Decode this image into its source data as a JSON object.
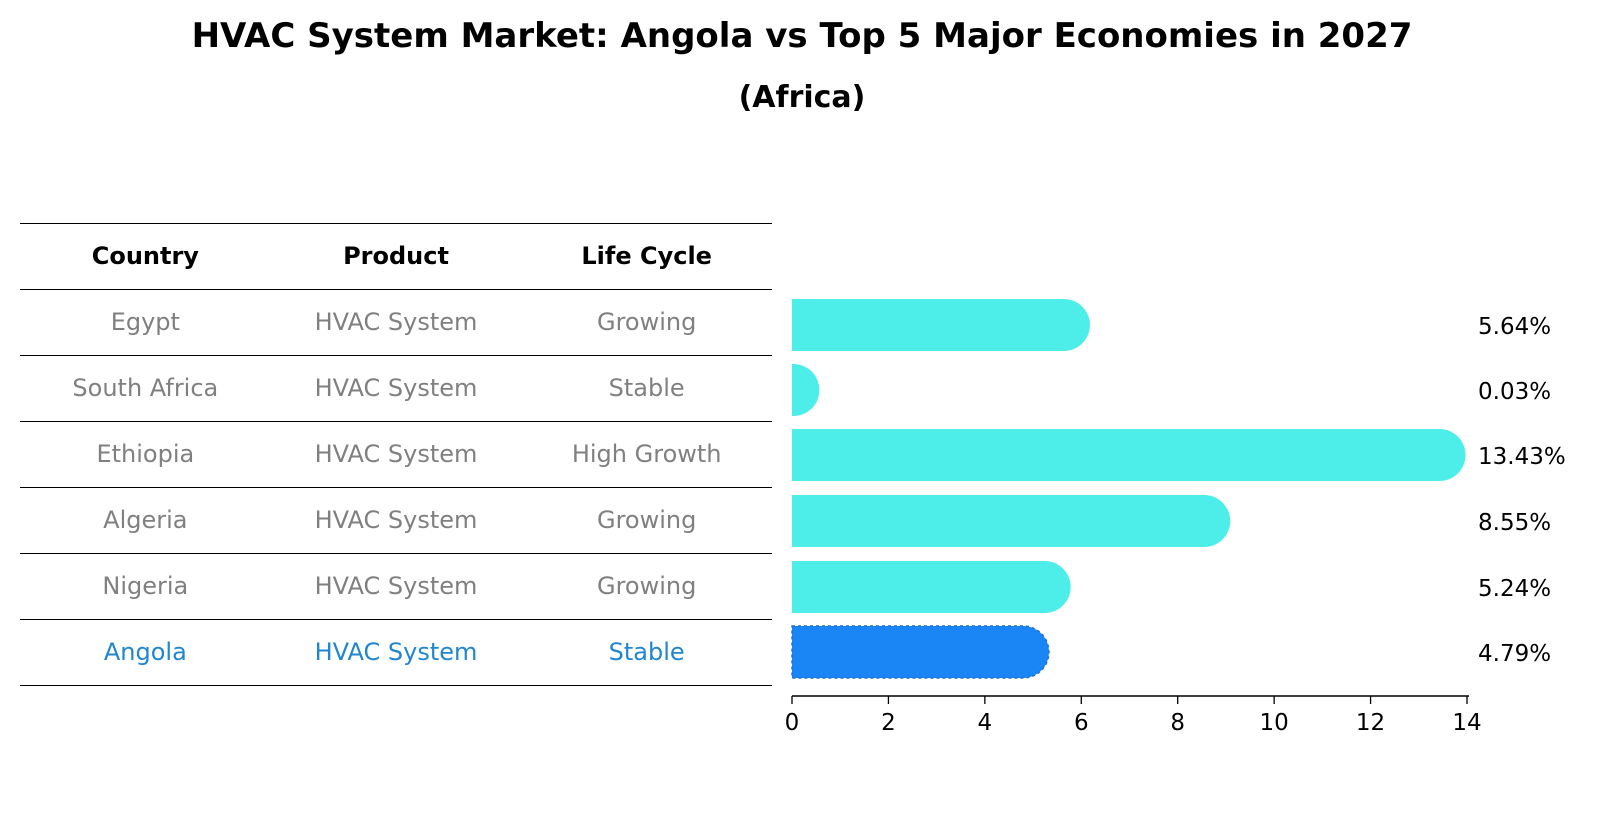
{
  "title": "HVAC System Market: Angola vs Top 5 Major Economies in 2027",
  "subtitle": "(Africa)",
  "table": {
    "headers": [
      "Country",
      "Product",
      "Life Cycle"
    ],
    "rows": [
      {
        "country": "Egypt",
        "product": "HVAC System",
        "life_cycle": "Growing",
        "highlight": false
      },
      {
        "country": "South Africa",
        "product": "HVAC System",
        "life_cycle": "Stable",
        "highlight": false
      },
      {
        "country": "Ethiopia",
        "product": "HVAC System",
        "life_cycle": "High Growth",
        "highlight": false
      },
      {
        "country": "Algeria",
        "product": "HVAC System",
        "life_cycle": "Growing",
        "highlight": false
      },
      {
        "country": "Nigeria",
        "product": "HVAC System",
        "life_cycle": "Growing",
        "highlight": false
      },
      {
        "country": "Angola",
        "product": "HVAC System",
        "life_cycle": "Stable",
        "highlight": true
      }
    ]
  },
  "colors": {
    "bar": "#4deeea",
    "highlight_bar": "#1a85f5",
    "row_text": "#808080",
    "highlight_text": "#1f86cf"
  },
  "chart_data": {
    "type": "bar",
    "orientation": "horizontal",
    "categories": [
      "Egypt",
      "South Africa",
      "Ethiopia",
      "Algeria",
      "Nigeria",
      "Angola"
    ],
    "values": [
      5.64,
      0.03,
      13.43,
      8.55,
      5.24,
      4.79
    ],
    "value_labels": [
      "5.64%",
      "0.03%",
      "13.43%",
      "8.55%",
      "5.24%",
      "4.79%"
    ],
    "highlight": "Angola",
    "xlim": [
      0,
      14
    ],
    "xticks": [
      0,
      2,
      4,
      6,
      8,
      10,
      12,
      14
    ],
    "grid": false
  }
}
